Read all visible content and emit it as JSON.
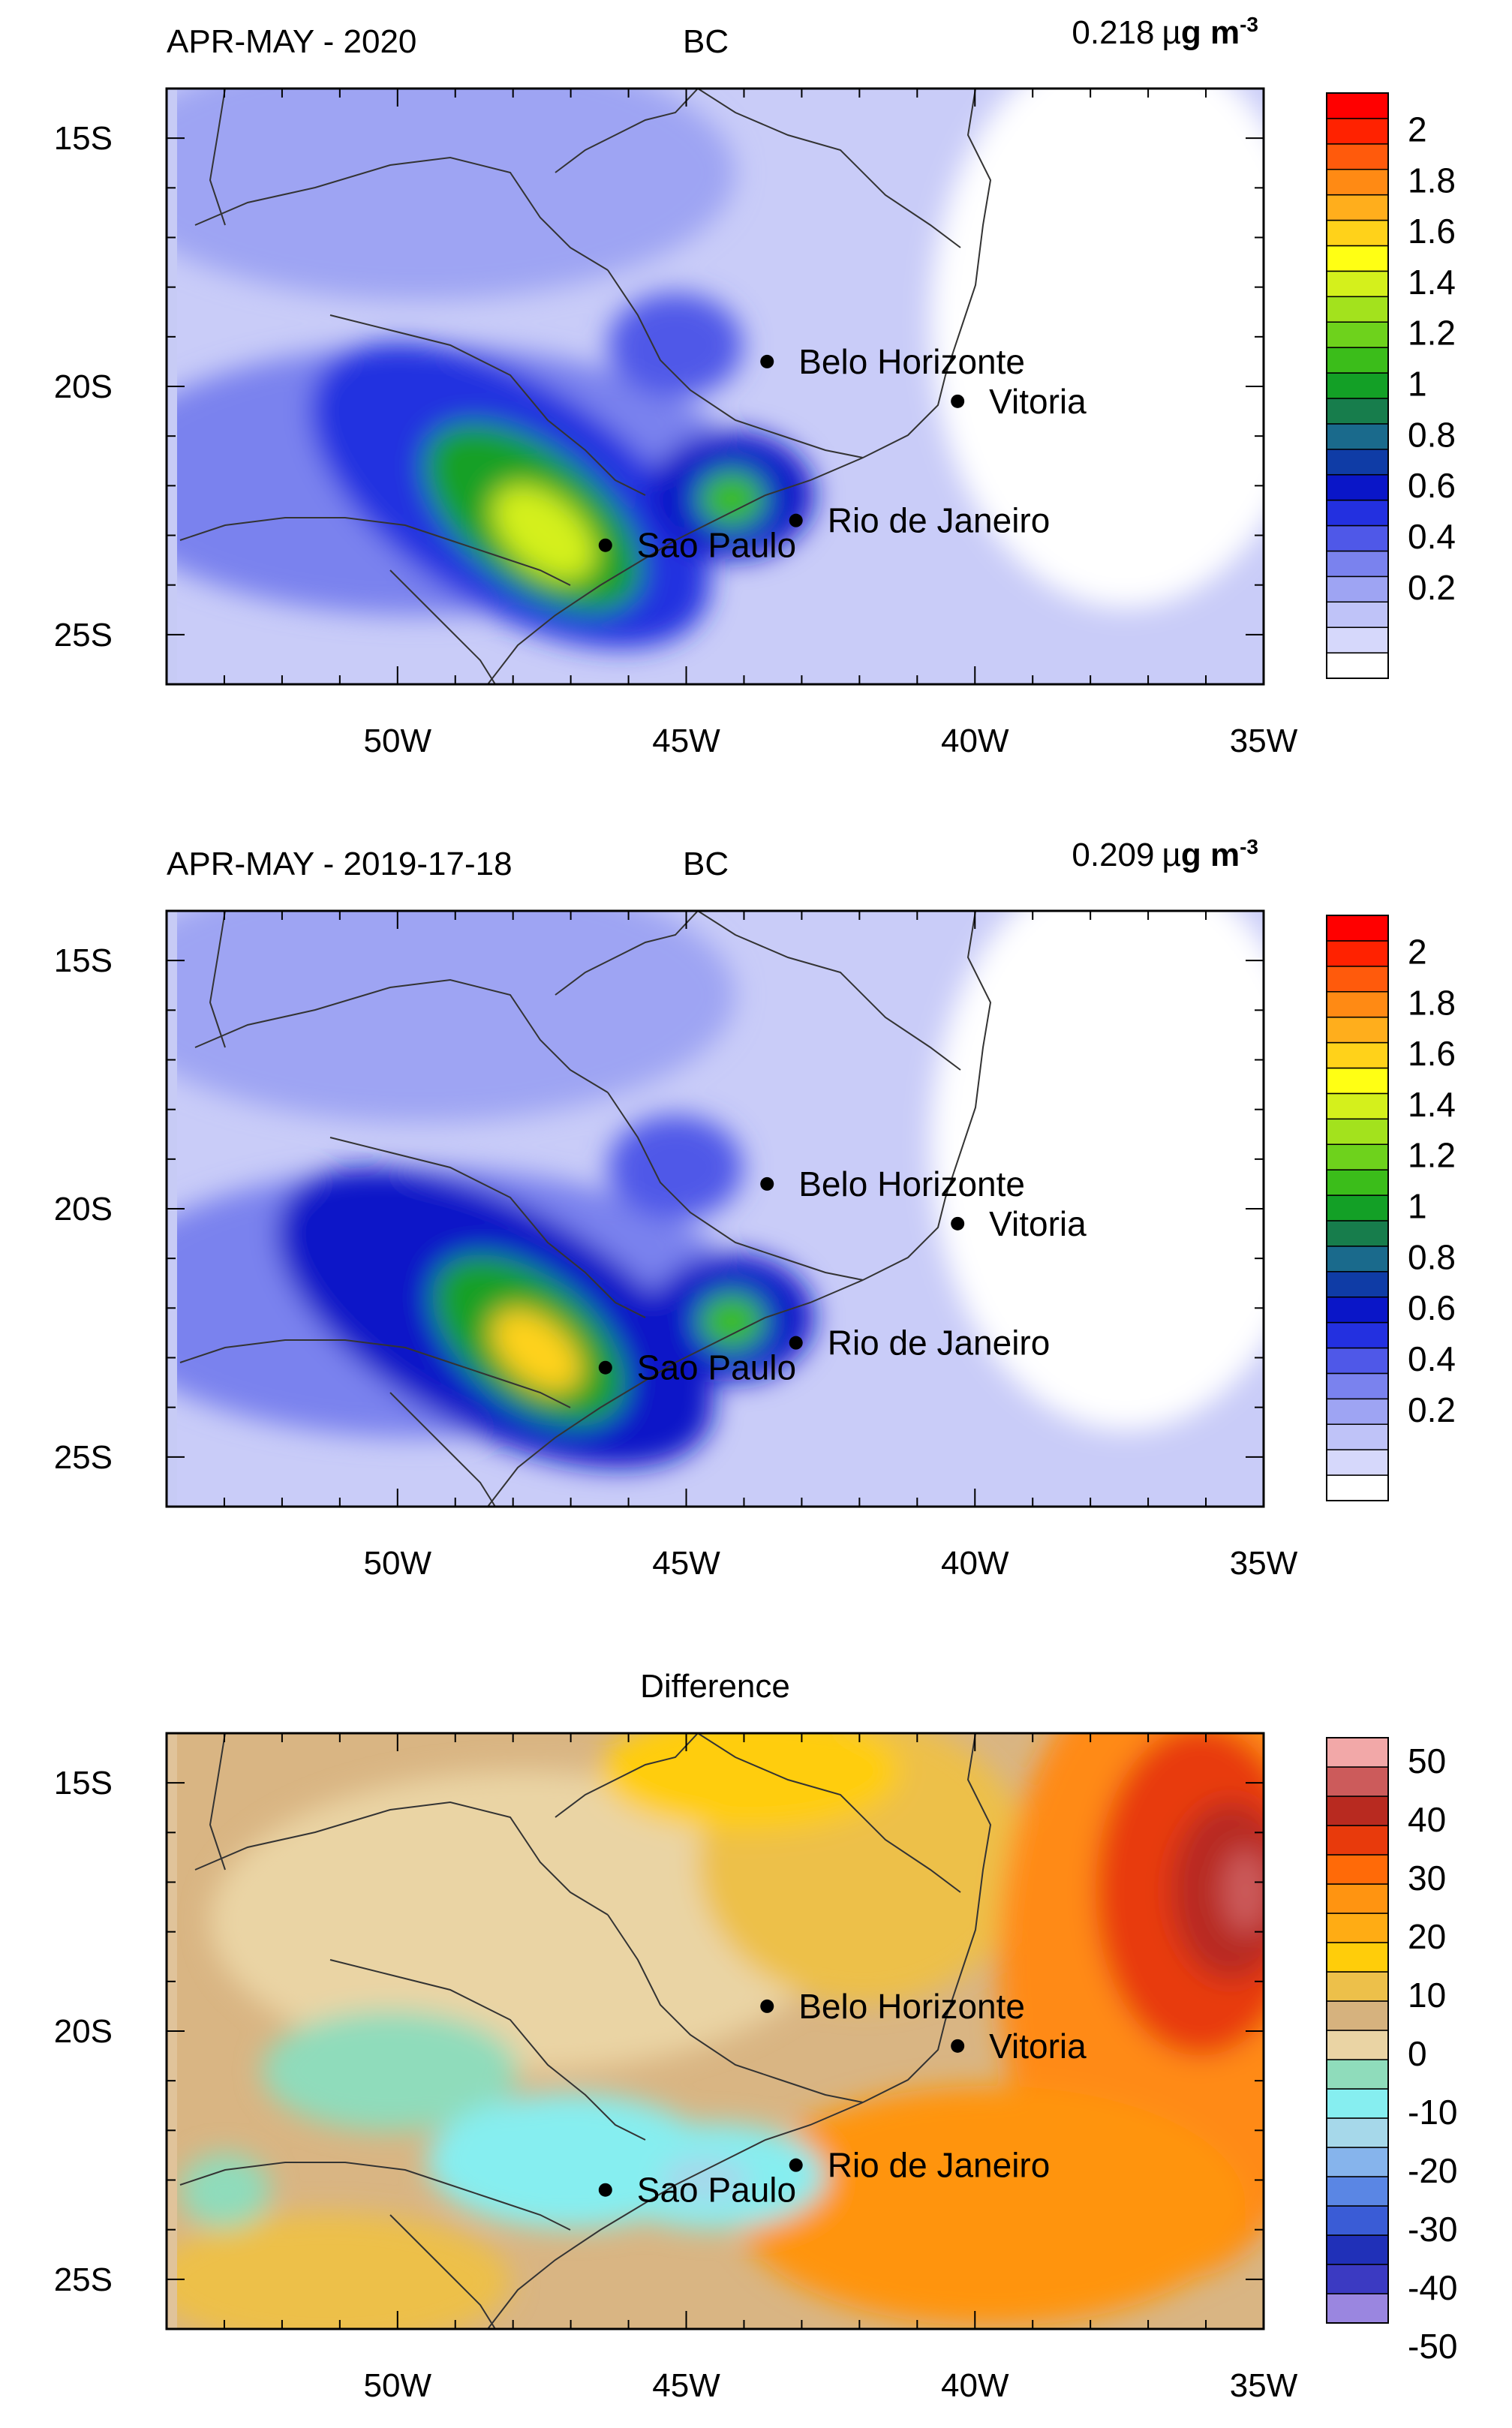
{
  "panels": [
    {
      "id": "apr-may-2020",
      "left_title": "APR-MAY - 2020",
      "center_title": "BC",
      "top_title": "",
      "mean_value": "0.218",
      "unit_mu": "µ",
      "unit_g": "g m",
      "unit_exp": "-3",
      "map": {
        "hotspots": [
          {
            "lon": -47.6,
            "lat": -23.0,
            "peak": 1.65,
            "sx": 2.6,
            "sy": 1.4,
            "rot": -35
          },
          {
            "lon": -44.0,
            "lat": -22.4,
            "peak": 0.95,
            "sx": 1.0,
            "sy": 0.8,
            "rot": 0
          },
          {
            "lon": -49.5,
            "lat": -22.0,
            "peak": 0.42,
            "sx": 2.0,
            "sy": 1.0,
            "rot": -20
          },
          {
            "lon": -44.5,
            "lat": -19.5,
            "peak": 0.5,
            "sx": 1.0,
            "sy": 0.8,
            "rot": 0
          },
          {
            "lon": -50.0,
            "lat": -17.0,
            "peak": 0.28,
            "sx": 3.0,
            "sy": 1.5,
            "rot": 0
          }
        ]
      }
    },
    {
      "id": "apr-may-2019-17-18",
      "left_title": "APR-MAY - 2019-17-18",
      "center_title": "BC",
      "top_title": "",
      "mean_value": "0.209",
      "unit_mu": "µ",
      "unit_g": "g m",
      "unit_exp": "-3",
      "map": {
        "hotspots": [
          {
            "lon": -47.6,
            "lat": -23.0,
            "peak": 1.7,
            "sx": 2.4,
            "sy": 1.3,
            "rot": -35
          },
          {
            "lon": -44.0,
            "lat": -22.5,
            "peak": 1.0,
            "sx": 1.0,
            "sy": 0.8,
            "rot": 0
          },
          {
            "lon": -49.5,
            "lat": -21.8,
            "peak": 0.45,
            "sx": 2.0,
            "sy": 1.0,
            "rot": -20
          },
          {
            "lon": -44.5,
            "lat": -19.5,
            "peak": 0.5,
            "sx": 1.0,
            "sy": 0.8,
            "rot": 0
          },
          {
            "lon": -50.0,
            "lat": -17.0,
            "peak": 0.25,
            "sx": 3.0,
            "sy": 1.5,
            "rot": 0
          }
        ]
      }
    },
    {
      "id": "difference",
      "left_title": "",
      "center_title": "",
      "top_title": "Difference",
      "mean_value": "",
      "unit_mu": "",
      "unit_g": "",
      "unit_exp": "",
      "map": {
        "hotspots": [
          {
            "lon": -35.8,
            "lat": -18.0,
            "peak": 30,
            "sx": 2.5,
            "sy": 3.5,
            "rot": 0
          },
          {
            "lon": -39.0,
            "lat": -24.5,
            "peak": 22,
            "sx": 3.0,
            "sy": 1.8,
            "rot": 0
          },
          {
            "lon": -46.0,
            "lat": -22.8,
            "peak": -22,
            "sx": 2.8,
            "sy": 1.2,
            "rot": -10
          },
          {
            "lon": -51.0,
            "lat": -22.5,
            "peak": -8,
            "sx": 2.0,
            "sy": 1.0,
            "rot": 0
          },
          {
            "lon": -42.0,
            "lat": -17.5,
            "peak": 10,
            "sx": 2.0,
            "sy": 2.5,
            "rot": 0
          }
        ]
      }
    }
  ],
  "axes": {
    "lon_range": [
      -54,
      -35
    ],
    "lat_range": [
      -26,
      -14
    ],
    "x_ticks": [
      {
        "value": -50,
        "label": "50W"
      },
      {
        "value": -45,
        "label": "45W"
      },
      {
        "value": -40,
        "label": "40W"
      },
      {
        "value": -35,
        "label": "35W"
      }
    ],
    "y_ticks": [
      {
        "value": -15,
        "label": "15S"
      },
      {
        "value": -20,
        "label": "20S"
      },
      {
        "value": -25,
        "label": "25S"
      }
    ]
  },
  "cities": [
    {
      "name": "Belo Horizonte",
      "lon": -43.6,
      "lat": -19.5
    },
    {
      "name": "Vitoria",
      "lon": -40.3,
      "lat": -20.3
    },
    {
      "name": "Rio de Janeiro",
      "lon": -43.1,
      "lat": -22.7
    },
    {
      "name": "Sao Paulo",
      "lon": -46.4,
      "lat": -23.2
    }
  ],
  "colorbars": {
    "bc": {
      "colors": [
        "#ffffff",
        "#d6d8fb",
        "#bfc3f8",
        "#9ea4f3",
        "#7a82ee",
        "#4f58e8",
        "#2330e0",
        "#0a16c8",
        "#0f3ca6",
        "#1a6a8c",
        "#177d4c",
        "#13a026",
        "#3bbd1a",
        "#6ed21c",
        "#a3e21d",
        "#d4f01c",
        "#ffff14",
        "#ffd21a",
        "#ffae1c",
        "#ff8a14",
        "#ff5a0c",
        "#ff2200",
        "#ff0000"
      ],
      "labels": [
        "2",
        "1.8",
        "1.6",
        "1.4",
        "1.2",
        "1",
        "0.8",
        "0.6",
        "0.4",
        "0.2"
      ]
    },
    "diff": {
      "colors": [
        "#9a86e0",
        "#3b3ac2",
        "#2030b8",
        "#3a5cd6",
        "#5a86e4",
        "#86b4ec",
        "#a6d8ea",
        "#86eef0",
        "#8fdcbb",
        "#ead4a4",
        "#d6b27e",
        "#edc04a",
        "#ffcd0a",
        "#ffac14",
        "#ff9411",
        "#ff6a08",
        "#e83a0c",
        "#b82a20",
        "#cc5b5b",
        "#f2a8a8"
      ],
      "labels": [
        "50",
        "40",
        "30",
        "20",
        "10",
        "0",
        "-10",
        "-20",
        "-30",
        "-40",
        "-50"
      ]
    }
  }
}
